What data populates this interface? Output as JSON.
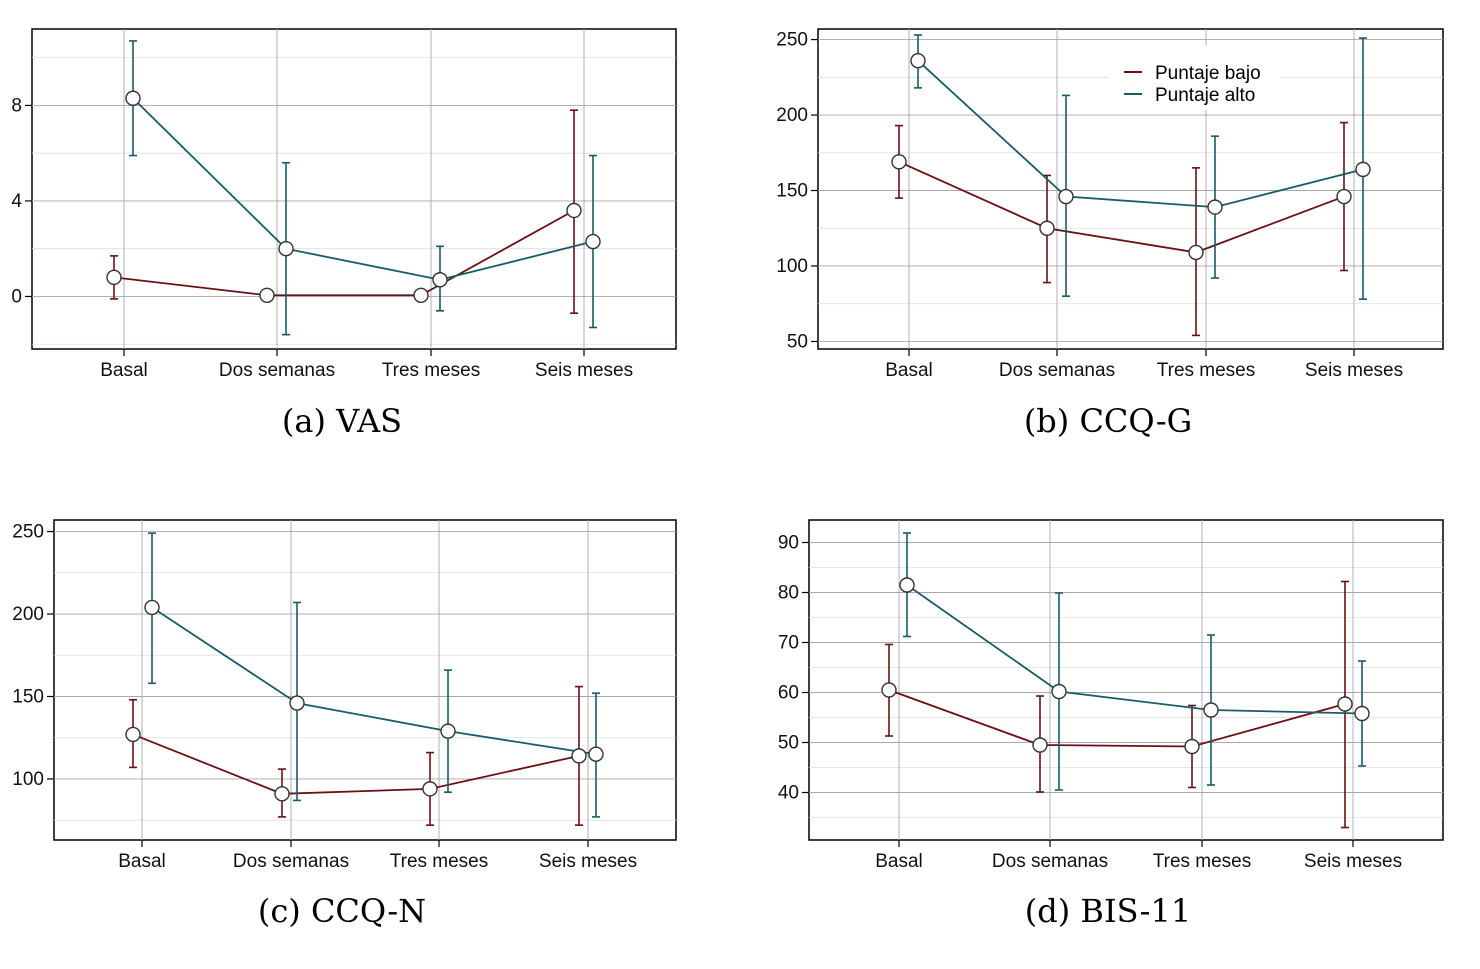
{
  "colors": {
    "low": "#6b1014",
    "high": "#1a5c66"
  },
  "legend": [
    "Puntaje bajo",
    "Puntaje alto"
  ],
  "chart_data": [
    {
      "type": "line",
      "caption": "(a) VAS",
      "categories": [
        "Basal",
        "Dos semanas",
        "Tres meses",
        "Seis meses"
      ],
      "ylim": [
        -2.2,
        11.2
      ],
      "yticks": [
        0,
        4,
        8
      ],
      "series": [
        {
          "name": "Puntaje bajo",
          "values": [
            0.8,
            0.05,
            0.05,
            3.6
          ],
          "lower": [
            -0.1,
            0.05,
            0.05,
            -0.7
          ],
          "upper": [
            1.7,
            0.05,
            0.05,
            7.8
          ]
        },
        {
          "name": "Puntaje alto",
          "values": [
            8.3,
            2.0,
            0.7,
            2.3
          ],
          "lower": [
            5.9,
            -1.6,
            -0.6,
            -1.3
          ],
          "upper": [
            10.7,
            5.6,
            2.1,
            5.9
          ]
        }
      ]
    },
    {
      "type": "line",
      "caption": "(b) CCQ-G",
      "categories": [
        "Basal",
        "Dos semanas",
        "Tres meses",
        "Seis meses"
      ],
      "ylim": [
        45,
        257
      ],
      "yticks": [
        50,
        100,
        150,
        200,
        250
      ],
      "series": [
        {
          "name": "Puntaje bajo",
          "values": [
            169,
            125,
            109,
            146
          ],
          "lower": [
            145,
            89,
            54,
            97
          ],
          "upper": [
            193,
            160,
            165,
            195
          ]
        },
        {
          "name": "Puntaje alto",
          "values": [
            236,
            146,
            139,
            164
          ],
          "lower": [
            218,
            80,
            92,
            78
          ],
          "upper": [
            253,
            213,
            186,
            251
          ]
        }
      ]
    },
    {
      "type": "line",
      "caption": "(c) CCQ-N",
      "categories": [
        "Basal",
        "Dos semanas",
        "Tres meses",
        "Seis meses"
      ],
      "ylim": [
        63,
        257
      ],
      "yticks": [
        100,
        150,
        200,
        250
      ],
      "series": [
        {
          "name": "Puntaje bajo",
          "values": [
            127,
            91,
            94,
            114
          ],
          "lower": [
            107,
            77,
            72,
            72
          ],
          "upper": [
            148,
            106,
            116,
            156
          ]
        },
        {
          "name": "Puntaje alto",
          "values": [
            204,
            146,
            129,
            115
          ],
          "lower": [
            158,
            87,
            92,
            77
          ],
          "upper": [
            249,
            207,
            166,
            152
          ]
        }
      ]
    },
    {
      "type": "line",
      "caption": "(d) BIS-11",
      "categories": [
        "Basal",
        "Dos semanas",
        "Tres meses",
        "Seis meses"
      ],
      "ylim": [
        30.5,
        94.5
      ],
      "yticks": [
        40,
        50,
        60,
        70,
        80,
        90
      ],
      "series": [
        {
          "name": "Puntaje bajo",
          "values": [
            60.5,
            49.5,
            49.2,
            57.7
          ],
          "lower": [
            51.3,
            40.1,
            41,
            33
          ],
          "upper": [
            69.6,
            59.3,
            57.4,
            82.2
          ]
        },
        {
          "name": "Puntaje alto",
          "values": [
            81.5,
            60.2,
            56.5,
            55.8
          ],
          "lower": [
            71.2,
            40.5,
            41.5,
            45.3
          ],
          "upper": [
            91.9,
            79.9,
            71.5,
            66.3
          ]
        }
      ]
    }
  ]
}
